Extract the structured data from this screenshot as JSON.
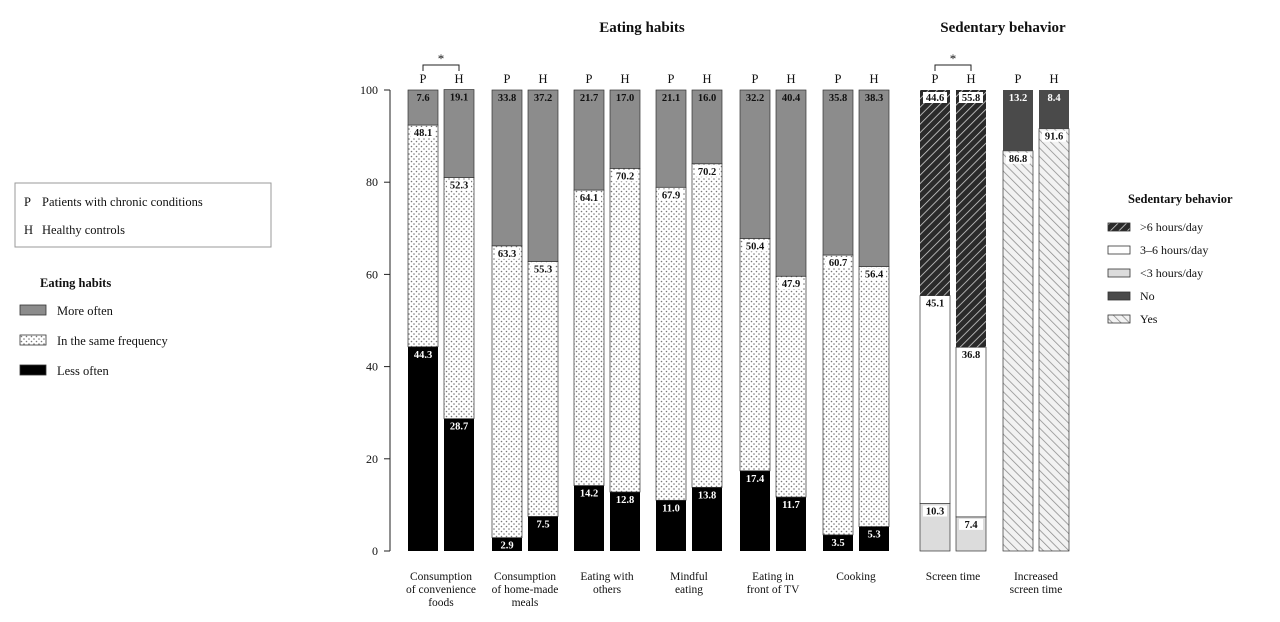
{
  "chart_data": {
    "type": "bar",
    "stacked": true,
    "percent": true,
    "titles": {
      "eating": "Eating habits",
      "sedentary": "Sedentary behavior"
    },
    "group_legend": {
      "items": [
        {
          "key": "P",
          "label": "Patients with chronic conditions"
        },
        {
          "key": "H",
          "label": "Healthy controls"
        }
      ]
    },
    "eating_legend": {
      "title": "Eating habits",
      "items": [
        {
          "label": "More often",
          "pattern": "grey"
        },
        {
          "label": "In the same frequency",
          "pattern": "dots"
        },
        {
          "label": "Less often",
          "pattern": "black"
        }
      ]
    },
    "sedentary_legend": {
      "title": "Sedentary behavior",
      "items": [
        {
          "label": ">6 hours/day",
          "pattern": "darkhatch"
        },
        {
          "label": "3–6 hours/day",
          "pattern": "white"
        },
        {
          "label": "<3 hours/day",
          "pattern": "lightgrey"
        },
        {
          "label": "No",
          "pattern": "dark"
        },
        {
          "label": "Yes",
          "pattern": "lighthatch"
        }
      ]
    },
    "ylim": [
      0,
      100
    ],
    "yticks": [
      "0",
      "20",
      "40",
      "60",
      "80",
      "100"
    ],
    "significance": "*",
    "categories": [
      {
        "label": [
          "Consumption",
          "of convenience",
          "foods"
        ],
        "significant": true,
        "bars": [
          {
            "group": "P",
            "segments": [
              {
                "v": 44.3,
                "pattern": "black",
                "label": "44.3"
              },
              {
                "v": 48.1,
                "pattern": "dots",
                "label": "48.1"
              },
              {
                "v": 7.6,
                "pattern": "grey",
                "label": "7.6"
              }
            ]
          },
          {
            "group": "H",
            "segments": [
              {
                "v": 28.7,
                "pattern": "black",
                "label": "28.7"
              },
              {
                "v": 52.3,
                "pattern": "dots",
                "label": "52.3"
              },
              {
                "v": 19.1,
                "pattern": "grey",
                "label": "19.1"
              }
            ]
          }
        ]
      },
      {
        "label": [
          "Consumption",
          "of home-made",
          "meals"
        ],
        "significant": false,
        "bars": [
          {
            "group": "P",
            "segments": [
              {
                "v": 2.9,
                "pattern": "black",
                "label": "2.9"
              },
              {
                "v": 63.3,
                "pattern": "dots",
                "label": "63.3"
              },
              {
                "v": 33.8,
                "pattern": "grey",
                "label": "33.8"
              }
            ]
          },
          {
            "group": "H",
            "segments": [
              {
                "v": 7.5,
                "pattern": "black",
                "label": "7.5"
              },
              {
                "v": 55.3,
                "pattern": "dots",
                "label": "55.3"
              },
              {
                "v": 37.2,
                "pattern": "grey",
                "label": "37.2"
              }
            ]
          }
        ]
      },
      {
        "label": [
          "Eating with",
          "others"
        ],
        "significant": false,
        "bars": [
          {
            "group": "P",
            "segments": [
              {
                "v": 14.2,
                "pattern": "black",
                "label": "14.2"
              },
              {
                "v": 64.1,
                "pattern": "dots",
                "label": "64.1"
              },
              {
                "v": 21.7,
                "pattern": "grey",
                "label": "21.7"
              }
            ]
          },
          {
            "group": "H",
            "segments": [
              {
                "v": 12.8,
                "pattern": "black",
                "label": "12.8"
              },
              {
                "v": 70.2,
                "pattern": "dots",
                "label": "70.2"
              },
              {
                "v": 17.0,
                "pattern": "grey",
                "label": "17.0"
              }
            ]
          }
        ]
      },
      {
        "label": [
          "Mindful",
          "eating"
        ],
        "significant": false,
        "bars": [
          {
            "group": "P",
            "segments": [
              {
                "v": 11.0,
                "pattern": "black",
                "label": "11.0"
              },
              {
                "v": 67.9,
                "pattern": "dots",
                "label": "67.9"
              },
              {
                "v": 21.1,
                "pattern": "grey",
                "label": "21.1"
              }
            ]
          },
          {
            "group": "H",
            "segments": [
              {
                "v": 13.8,
                "pattern": "black",
                "label": "13.8"
              },
              {
                "v": 70.2,
                "pattern": "dots",
                "label": "70.2"
              },
              {
                "v": 16.0,
                "pattern": "grey",
                "label": "16.0"
              }
            ]
          }
        ]
      },
      {
        "label": [
          "Eating in",
          "front of TV"
        ],
        "significant": false,
        "bars": [
          {
            "group": "P",
            "segments": [
              {
                "v": 17.4,
                "pattern": "black",
                "label": "17.4"
              },
              {
                "v": 50.4,
                "pattern": "dots",
                "label": "50.4"
              },
              {
                "v": 32.2,
                "pattern": "grey",
                "label": "32.2"
              }
            ]
          },
          {
            "group": "H",
            "segments": [
              {
                "v": 11.7,
                "pattern": "black",
                "label": "11.7"
              },
              {
                "v": 47.9,
                "pattern": "dots",
                "label": "47.9"
              },
              {
                "v": 40.4,
                "pattern": "grey",
                "label": "40.4"
              }
            ]
          }
        ]
      },
      {
        "label": [
          "Cooking"
        ],
        "significant": false,
        "bars": [
          {
            "group": "P",
            "segments": [
              {
                "v": 3.5,
                "pattern": "black",
                "label": "3.5"
              },
              {
                "v": 60.7,
                "pattern": "dots",
                "label": "60.7"
              },
              {
                "v": 35.8,
                "pattern": "grey",
                "label": "35.8"
              }
            ]
          },
          {
            "group": "H",
            "segments": [
              {
                "v": 5.3,
                "pattern": "black",
                "label": "5.3"
              },
              {
                "v": 56.4,
                "pattern": "dots",
                "label": "56.4"
              },
              {
                "v": 38.3,
                "pattern": "grey",
                "label": "38.3"
              }
            ]
          }
        ]
      },
      {
        "label": [
          "Screen time"
        ],
        "significant": true,
        "bars": [
          {
            "group": "P",
            "segments": [
              {
                "v": 10.3,
                "pattern": "lightgrey",
                "label": "10.3"
              },
              {
                "v": 45.1,
                "pattern": "white",
                "label": "45.1"
              },
              {
                "v": 44.6,
                "pattern": "darkhatch",
                "label": "44.6"
              }
            ]
          },
          {
            "group": "H",
            "segments": [
              {
                "v": 7.4,
                "pattern": "lightgrey",
                "label": "7.4"
              },
              {
                "v": 36.8,
                "pattern": "white",
                "label": "36.8"
              },
              {
                "v": 55.8,
                "pattern": "darkhatch",
                "label": "55.8"
              }
            ]
          }
        ]
      },
      {
        "label": [
          "Increased",
          "screen time"
        ],
        "significant": false,
        "bars": [
          {
            "group": "P",
            "segments": [
              {
                "v": 86.8,
                "pattern": "lighthatch",
                "label": "86.8"
              },
              {
                "v": 13.2,
                "pattern": "dark",
                "label": "13.2"
              }
            ]
          },
          {
            "group": "H",
            "segments": [
              {
                "v": 91.6,
                "pattern": "lighthatch",
                "label": "91.6"
              },
              {
                "v": 8.4,
                "pattern": "dark",
                "label": "8.4"
              }
            ]
          }
        ]
      }
    ]
  }
}
